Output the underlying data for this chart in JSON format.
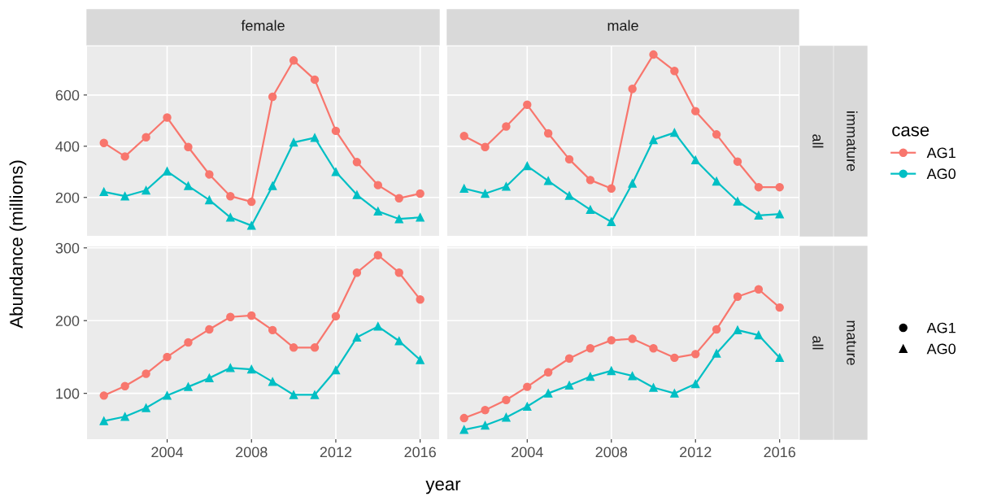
{
  "chart_data": [
    {
      "type": "line",
      "title": "female",
      "ylabel": "Abundance (millions)",
      "legend": "right",
      "legend_title": "case",
      "x": [
        2001,
        2002,
        2003,
        2004,
        2005,
        2006,
        2007,
        2008,
        2009,
        2010,
        2011,
        2012,
        2013,
        2014,
        2015,
        2016
      ],
      "xlim": [
        2000.2,
        2016.9
      ],
      "xticks": [
        2004,
        2008,
        2012,
        2016
      ],
      "ylim": [
        50,
        790
      ],
      "yticks": [
        200,
        400,
        600
      ],
      "grid": true,
      "tick_labels": "y",
      "series": [
        {
          "name": "AG1",
          "color": "#f8766d",
          "marker": "circle",
          "values": [
            413,
            360,
            435,
            512,
            397,
            290,
            205,
            183,
            593,
            735,
            660,
            460,
            338,
            248,
            197,
            215
          ]
        },
        {
          "name": "AG0",
          "color": "#00bfc4",
          "marker": "triangle",
          "values": [
            222,
            205,
            228,
            302,
            245,
            190,
            122,
            90,
            245,
            415,
            433,
            300,
            210,
            146,
            116,
            122
          ]
        }
      ]
    },
    {
      "type": "line",
      "title": "male",
      "annotations": [
        "all",
        "immature"
      ],
      "x": [
        2001,
        2002,
        2003,
        2004,
        2005,
        2006,
        2007,
        2008,
        2009,
        2010,
        2011,
        2012,
        2013,
        2014,
        2015,
        2016
      ],
      "xlim": [
        2000.2,
        2016.9
      ],
      "xticks": [
        2004,
        2008,
        2012,
        2016
      ],
      "ylim": [
        50,
        790
      ],
      "yticks": [
        200,
        400,
        600
      ],
      "grid": true,
      "tick_labels": false,
      "series": [
        {
          "name": "AG1",
          "color": "#f8766d",
          "marker": "circle",
          "values": [
            440,
            397,
            477,
            562,
            450,
            349,
            268,
            235,
            624,
            758,
            694,
            537,
            446,
            340,
            240,
            240
          ]
        },
        {
          "name": "AG0",
          "color": "#00bfc4",
          "marker": "triangle",
          "values": [
            235,
            215,
            243,
            323,
            265,
            207,
            152,
            105,
            255,
            425,
            453,
            346,
            263,
            185,
            130,
            135
          ]
        }
      ]
    },
    {
      "type": "line",
      "xlabel": "year",
      "x": [
        2001,
        2002,
        2003,
        2004,
        2005,
        2006,
        2007,
        2008,
        2009,
        2010,
        2011,
        2012,
        2013,
        2014,
        2015,
        2016
      ],
      "xlim": [
        2000.2,
        2016.9
      ],
      "xticks": [
        2004,
        2008,
        2012,
        2016
      ],
      "ylim": [
        37,
        302
      ],
      "yticks": [
        100,
        200,
        300
      ],
      "grid": true,
      "series": [
        {
          "name": "AG1",
          "color": "#f8766d",
          "marker": "circle",
          "values": [
            97,
            110,
            127,
            150,
            170,
            188,
            205,
            207,
            187,
            163,
            163,
            206,
            266,
            290,
            266,
            229
          ]
        },
        {
          "name": "AG0",
          "color": "#00bfc4",
          "marker": "triangle",
          "values": [
            62,
            68,
            80,
            97,
            109,
            121,
            135,
            133,
            116,
            98,
            98,
            132,
            177,
            192,
            172,
            146
          ]
        }
      ]
    },
    {
      "type": "line",
      "annotations": [
        "all",
        "mature"
      ],
      "x": [
        2001,
        2002,
        2003,
        2004,
        2005,
        2006,
        2007,
        2008,
        2009,
        2010,
        2011,
        2012,
        2013,
        2014,
        2015,
        2016
      ],
      "xlim": [
        2000.2,
        2016.9
      ],
      "xticks": [
        2004,
        2008,
        2012,
        2016
      ],
      "ylim": [
        37,
        302
      ],
      "yticks": [
        100,
        200,
        300
      ],
      "grid": true,
      "tick_labels": "x",
      "series": [
        {
          "name": "AG1",
          "color": "#f8766d",
          "marker": "circle",
          "values": [
            66,
            77,
            91,
            109,
            129,
            148,
            162,
            173,
            175,
            162,
            149,
            154,
            188,
            233,
            243,
            218
          ]
        },
        {
          "name": "AG0",
          "color": "#00bfc4",
          "marker": "triangle",
          "values": [
            50,
            56,
            67,
            82,
            100,
            111,
            123,
            131,
            124,
            108,
            100,
            113,
            155,
            187,
            180,
            149
          ]
        }
      ]
    }
  ]
}
